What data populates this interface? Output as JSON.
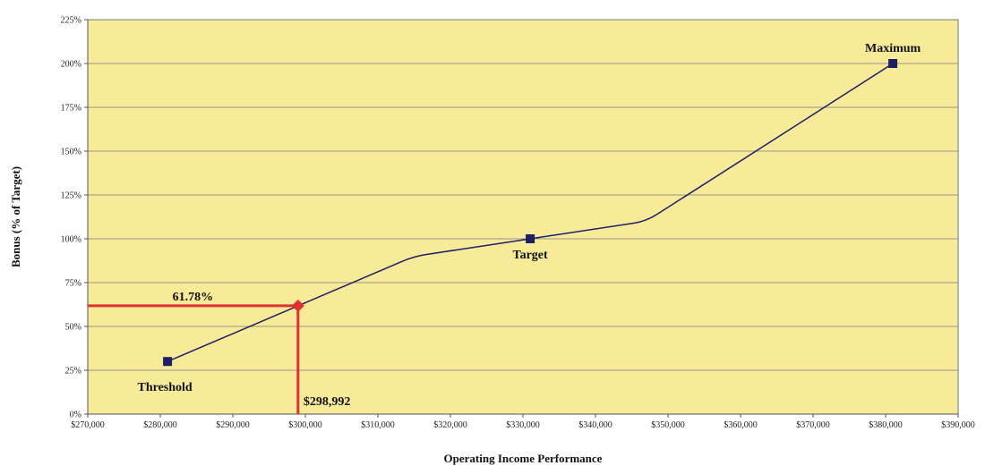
{
  "chart_data": {
    "type": "line",
    "title": "",
    "xlabel": "Operating Income Performance",
    "ylabel": "Bonus (% of Target)",
    "xlim": [
      270000,
      390000
    ],
    "ylim": [
      0,
      225
    ],
    "x_ticks": [
      270000,
      280000,
      290000,
      300000,
      310000,
      320000,
      330000,
      340000,
      350000,
      360000,
      370000,
      380000,
      390000
    ],
    "x_tick_labels": [
      "$270,000",
      "$280,000",
      "$290,000",
      "$300,000",
      "$310,000",
      "$320,000",
      "$330,000",
      "$340,000",
      "$350,000",
      "$360,000",
      "$370,000",
      "$380,000",
      "$390,000"
    ],
    "y_ticks": [
      0,
      25,
      50,
      75,
      100,
      125,
      150,
      175,
      200,
      225
    ],
    "y_tick_labels": [
      "0%",
      "25%",
      "50%",
      "75%",
      "100%",
      "125%",
      "150%",
      "175%",
      "200%",
      "225%"
    ],
    "grid": true,
    "legend": "none",
    "colors": {
      "plot_background": "#f7ea99",
      "line": "#1f1f66",
      "marker": "#1f1f66",
      "highlight": "#e03030",
      "grid": "#7a7a7a"
    },
    "series": [
      {
        "x": [
          281000,
          315000,
          331000,
          347000,
          381000
        ],
        "y": [
          30,
          90,
          100,
          110,
          200
        ]
      }
    ],
    "markers": [
      {
        "x": 281000,
        "y": 30,
        "label": "Threshold"
      },
      {
        "x": 331000,
        "y": 100,
        "label": "Target"
      },
      {
        "x": 381000,
        "y": 200,
        "label": "Maximum"
      }
    ],
    "highlight": {
      "x": 298992,
      "y": 61.78,
      "x_label": "$298,992",
      "y_label": "61.78%"
    }
  }
}
